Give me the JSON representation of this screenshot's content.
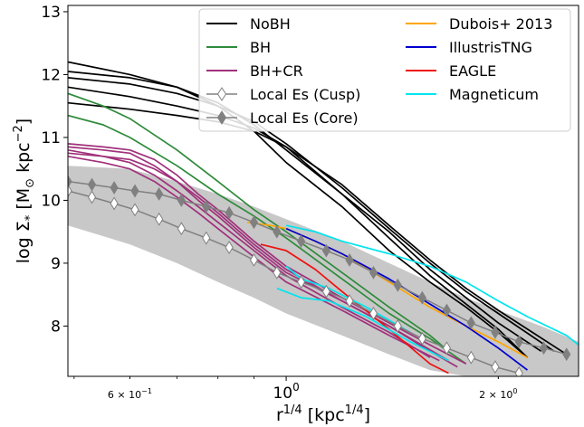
{
  "chart_data": {
    "type": "line",
    "xlabel": "r^1/4 [kpc^1/4]",
    "ylabel": "log Σ* [M⊙ kpc^-2]",
    "xscale": "log",
    "xlim": [
      0.49,
      2.6
    ],
    "ylim": [
      7.2,
      13.1
    ],
    "x_tick_labels": [
      {
        "value": 0.6,
        "label": "6 × 10^-1"
      },
      {
        "value": 1.0,
        "label": "10^0"
      },
      {
        "value": 2.0,
        "label": "2 × 10^0"
      }
    ],
    "y_ticks": [
      8,
      9,
      10,
      11,
      12,
      13
    ],
    "grid": false,
    "legend": {
      "placement": "top-right",
      "columns": 2,
      "entries": [
        {
          "label": "NoBH",
          "color": "#000000",
          "style": "line"
        },
        {
          "label": "BH",
          "color": "#2e8b3a",
          "style": "line"
        },
        {
          "label": "BH+CR",
          "color": "#a0307a",
          "style": "line"
        },
        {
          "label": "Local Es (Cusp)",
          "color": "#808080",
          "style": "marker-open"
        },
        {
          "label": "Local Es (Core)",
          "color": "#808080",
          "style": "marker-filled"
        },
        {
          "label": "Dubois+ 2013",
          "color": "#ffa500",
          "style": "line"
        },
        {
          "label": "IllustrisTNG",
          "color": "#0000cd",
          "style": "line"
        },
        {
          "label": "EAGLE",
          "color": "#ee1111",
          "style": "line"
        },
        {
          "label": "Magneticum",
          "color": "#00e5ee",
          "style": "line"
        }
      ]
    },
    "band": {
      "color": "#c8c8c8",
      "x": [
        0.49,
        0.6,
        0.7,
        0.8,
        0.9,
        1.0,
        1.2,
        1.4,
        1.6,
        1.8,
        2.0,
        2.3,
        2.6
      ],
      "upper": [
        10.55,
        10.5,
        10.3,
        10.1,
        9.9,
        9.7,
        9.35,
        9.0,
        8.7,
        8.45,
        8.25,
        8.0,
        7.75
      ],
      "lower": [
        9.6,
        9.3,
        9.0,
        8.7,
        8.45,
        8.2,
        7.85,
        7.55,
        7.3,
        7.2,
        7.2,
        7.2,
        7.2
      ]
    },
    "series": [
      {
        "name": "NoBH",
        "color": "#000000",
        "x": [
          0.49,
          0.6,
          0.7,
          0.8,
          0.9,
          1.0,
          1.2,
          1.4,
          1.6,
          1.8,
          2.0,
          2.2
        ],
        "y": [
          12.2,
          12.0,
          11.8,
          11.5,
          11.1,
          10.6,
          9.9,
          9.2,
          8.7,
          8.3,
          7.9,
          7.5
        ]
      },
      {
        "name": "NoBH",
        "color": "#000000",
        "x": [
          0.49,
          0.6,
          0.7,
          0.8,
          0.9,
          1.0,
          1.2,
          1.4,
          1.6,
          1.8,
          2.0,
          2.3
        ],
        "y": [
          12.05,
          11.95,
          11.8,
          11.55,
          11.2,
          10.8,
          10.1,
          9.5,
          8.9,
          8.45,
          8.05,
          7.6
        ]
      },
      {
        "name": "NoBH",
        "color": "#000000",
        "x": [
          0.49,
          0.6,
          0.7,
          0.8,
          0.9,
          1.0,
          1.2,
          1.4,
          1.6,
          1.8,
          2.0,
          2.4
        ],
        "y": [
          11.95,
          11.85,
          11.7,
          11.5,
          11.25,
          10.9,
          10.2,
          9.55,
          9.0,
          8.55,
          8.2,
          7.6
        ]
      },
      {
        "name": "NoBH",
        "color": "#000000",
        "x": [
          0.49,
          0.6,
          0.7,
          0.8,
          0.9,
          1.0,
          1.2,
          1.4,
          1.6,
          1.8,
          2.0,
          2.5
        ],
        "y": [
          11.8,
          11.65,
          11.5,
          11.35,
          11.15,
          10.85,
          10.25,
          9.6,
          9.05,
          8.6,
          8.25,
          7.55
        ]
      },
      {
        "name": "NoBH",
        "color": "#000000",
        "x": [
          0.49,
          0.6,
          0.7,
          0.8,
          0.9,
          1.0,
          1.2,
          1.4,
          1.6,
          1.8,
          2.0,
          2.2
        ],
        "y": [
          11.55,
          11.45,
          11.35,
          11.25,
          11.1,
          10.85,
          10.1,
          9.4,
          8.8,
          8.35,
          7.95,
          7.5
        ]
      },
      {
        "name": "BH",
        "color": "#2e8b3a",
        "x": [
          0.49,
          0.55,
          0.6,
          0.7,
          0.8,
          0.9,
          1.0,
          1.2,
          1.4,
          1.6,
          1.8
        ],
        "y": [
          11.35,
          11.2,
          11.0,
          10.55,
          10.1,
          9.75,
          9.4,
          8.75,
          8.2,
          7.8,
          7.4
        ]
      },
      {
        "name": "BH",
        "color": "#2e8b3a",
        "x": [
          0.49,
          0.55,
          0.6,
          0.7,
          0.8,
          0.9,
          1.0,
          1.2,
          1.4,
          1.6,
          1.7
        ],
        "y": [
          11.7,
          11.5,
          11.3,
          10.8,
          10.3,
          9.85,
          9.5,
          8.85,
          8.3,
          7.85,
          7.6
        ]
      },
      {
        "name": "BH+CR",
        "color": "#a0307a",
        "x": [
          0.49,
          0.55,
          0.6,
          0.65,
          0.7,
          0.75,
          0.8,
          0.9,
          1.0,
          1.2,
          1.4,
          1.6,
          1.8
        ],
        "y": [
          10.9,
          10.85,
          10.8,
          10.65,
          10.4,
          10.1,
          9.85,
          9.35,
          8.95,
          8.45,
          8.05,
          7.7,
          7.4
        ]
      },
      {
        "name": "BH+CR",
        "color": "#a0307a",
        "x": [
          0.49,
          0.55,
          0.6,
          0.65,
          0.7,
          0.75,
          0.8,
          0.9,
          1.0,
          1.2,
          1.4,
          1.6,
          1.75
        ],
        "y": [
          10.85,
          10.8,
          10.75,
          10.55,
          10.3,
          10.0,
          9.75,
          9.25,
          8.85,
          8.4,
          8.0,
          7.6,
          7.35
        ]
      },
      {
        "name": "BH+CR",
        "color": "#a0307a",
        "x": [
          0.49,
          0.55,
          0.6,
          0.65,
          0.7,
          0.75,
          0.8,
          0.9,
          1.0,
          1.2,
          1.4,
          1.6
        ],
        "y": [
          10.8,
          10.7,
          10.6,
          10.4,
          10.15,
          9.9,
          9.65,
          9.2,
          8.8,
          8.3,
          7.9,
          7.5
        ]
      },
      {
        "name": "BH+CR",
        "color": "#a0307a",
        "x": [
          0.49,
          0.55,
          0.6,
          0.65,
          0.7,
          0.75,
          0.8,
          0.9,
          1.0,
          1.2,
          1.4,
          1.7
        ],
        "y": [
          10.75,
          10.7,
          10.65,
          10.5,
          10.3,
          10.05,
          9.8,
          9.3,
          8.9,
          8.4,
          8.0,
          7.45
        ]
      },
      {
        "name": "BH+CR",
        "color": "#a0307a",
        "x": [
          0.49,
          0.55,
          0.6,
          0.65,
          0.7,
          0.75,
          0.8,
          0.9,
          1.0,
          1.2,
          1.4,
          1.65
        ],
        "y": [
          10.7,
          10.6,
          10.5,
          10.3,
          10.05,
          9.8,
          9.55,
          9.1,
          8.7,
          8.25,
          7.85,
          7.45
        ]
      },
      {
        "name": "Dubois+ 2013",
        "color": "#ffa500",
        "x": [
          0.88,
          0.95,
          1.0,
          1.1,
          1.2,
          1.4,
          1.6,
          1.8,
          2.0,
          2.2
        ],
        "y": [
          9.65,
          9.6,
          9.55,
          9.35,
          9.15,
          8.7,
          8.3,
          8.0,
          7.75,
          7.5
        ]
      },
      {
        "name": "IllustrisTNG",
        "color": "#0000cd",
        "x": [
          1.0,
          1.1,
          1.2,
          1.4,
          1.6,
          1.8,
          2.0,
          2.2
        ],
        "y": [
          9.55,
          9.35,
          9.15,
          8.75,
          8.35,
          8.0,
          7.65,
          7.3
        ]
      },
      {
        "name": "EAGLE",
        "color": "#ee1111",
        "x": [
          0.92,
          1.0,
          1.1,
          1.2,
          1.4,
          1.6,
          1.7
        ],
        "y": [
          9.3,
          9.2,
          8.9,
          8.55,
          7.95,
          7.4,
          7.25
        ]
      },
      {
        "name": "Magneticum",
        "color": "#00e5ee",
        "x": [
          1.0,
          1.1,
          1.2,
          1.4,
          1.6,
          1.8,
          2.0,
          2.2,
          2.5,
          2.6
        ],
        "y": [
          9.6,
          9.5,
          9.35,
          9.15,
          8.95,
          8.7,
          8.4,
          8.15,
          7.85,
          7.7
        ]
      },
      {
        "name": "Magneticum",
        "color": "#00e5ee",
        "x": [
          0.97,
          1.05,
          1.15,
          1.3,
          1.5,
          1.7
        ],
        "y": [
          8.6,
          8.45,
          8.4,
          8.15,
          7.75,
          7.45
        ]
      },
      {
        "name": "Magneticum",
        "color": "#00e5ee",
        "x": [
          1.0,
          1.05,
          1.15,
          1.3,
          1.5
        ],
        "y": [
          8.95,
          8.75,
          8.6,
          8.3,
          7.9
        ]
      }
    ],
    "marker_series": [
      {
        "name": "Local Es (Core)",
        "filled": true,
        "color": "#808080",
        "x": [
          0.49,
          0.53,
          0.57,
          0.61,
          0.66,
          0.71,
          0.77,
          0.83,
          0.9,
          0.97,
          1.05,
          1.14,
          1.23,
          1.33,
          1.44,
          1.56,
          1.69,
          1.83,
          1.98,
          2.14,
          2.32,
          2.5
        ],
        "y": [
          10.3,
          10.25,
          10.2,
          10.15,
          10.1,
          10.0,
          9.9,
          9.8,
          9.65,
          9.5,
          9.35,
          9.2,
          9.05,
          8.85,
          8.65,
          8.45,
          8.25,
          8.05,
          7.9,
          7.75,
          7.65,
          7.55
        ]
      },
      {
        "name": "Local Es (Cusp)",
        "filled": false,
        "color": "#808080",
        "x": [
          0.49,
          0.53,
          0.57,
          0.61,
          0.66,
          0.71,
          0.77,
          0.83,
          0.9,
          0.97,
          1.05,
          1.14,
          1.23,
          1.33,
          1.44,
          1.56,
          1.69,
          1.83,
          1.98,
          2.14
        ],
        "y": [
          10.15,
          10.05,
          9.95,
          9.85,
          9.7,
          9.55,
          9.4,
          9.25,
          9.05,
          8.85,
          8.7,
          8.55,
          8.4,
          8.2,
          8.0,
          7.8,
          7.65,
          7.5,
          7.35,
          7.25
        ]
      }
    ]
  }
}
